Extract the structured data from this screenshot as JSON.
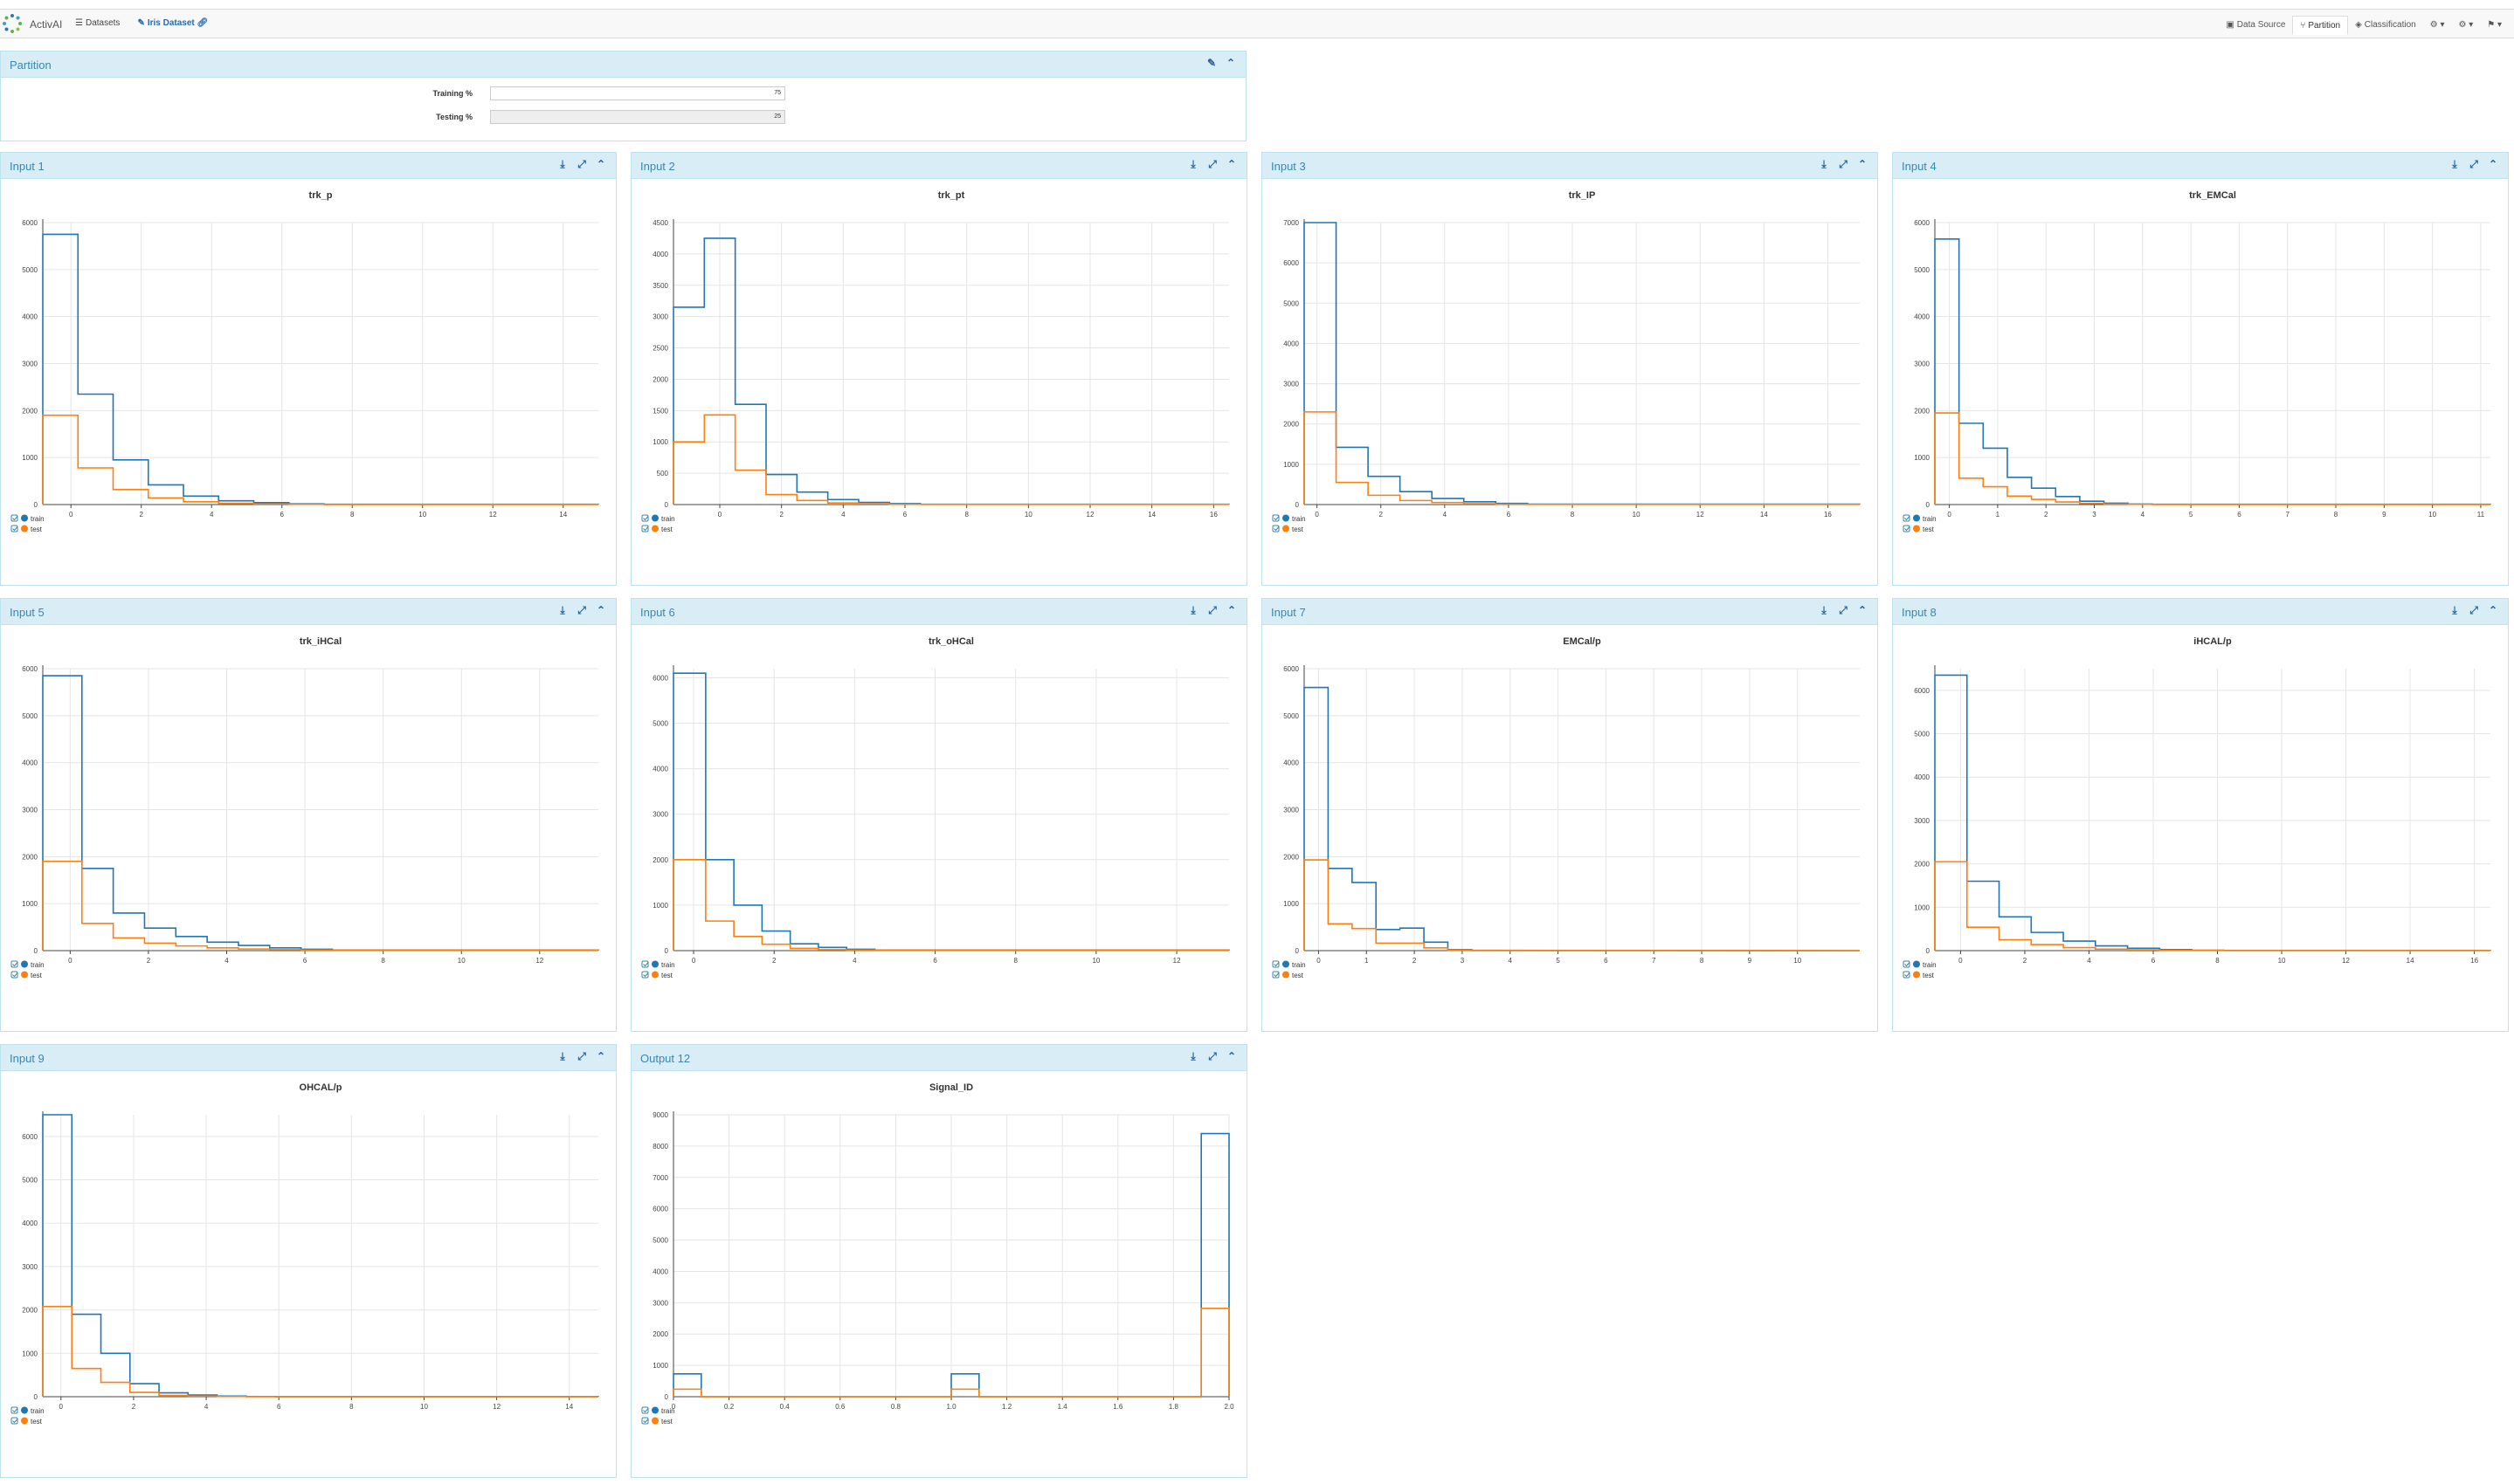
{
  "app": {
    "brand": "ActivAI",
    "nav_datasets": "Datasets",
    "nav_dataset_name": "Iris Dataset",
    "nav_data_source": "Data Source",
    "nav_partition": "Partition",
    "nav_classification": "Classification"
  },
  "partition": {
    "title": "Partition",
    "training_label": "Training %",
    "training_value": "75",
    "testing_label": "Testing %",
    "testing_value": "25"
  },
  "legend": {
    "train": "train",
    "test": "test"
  },
  "colors": {
    "train": "#1f77b4",
    "test": "#ff7f0e",
    "header": "#d9edf7",
    "title": "#3a87ad"
  },
  "panels": [
    {
      "title": "Input 1"
    },
    {
      "title": "Input 2"
    },
    {
      "title": "Input 3"
    },
    {
      "title": "Input 4"
    },
    {
      "title": "Input 5"
    },
    {
      "title": "Input 6"
    },
    {
      "title": "Input 7"
    },
    {
      "title": "Input 8"
    },
    {
      "title": "Input 9"
    },
    {
      "title": "Output 12"
    }
  ],
  "chart_data": [
    {
      "type": "line",
      "title": "trk_p",
      "xlim": [
        -0.8,
        15
      ],
      "ylim": [
        0,
        6000
      ],
      "xticks": [
        0,
        2,
        4,
        6,
        8,
        10,
        12,
        14
      ],
      "xticklabels": [
        "0",
        "2",
        "4",
        "6",
        "8",
        "10",
        "12",
        "14"
      ],
      "yticks": [
        0,
        1000,
        2000,
        3000,
        4000,
        5000,
        6000
      ],
      "bin_edges": [
        -0.8,
        0.2,
        1.2,
        2.2,
        3.2,
        4.2,
        5.2,
        6.2,
        7.2,
        15
      ],
      "series": [
        {
          "name": "train",
          "values": [
            5750,
            2350,
            950,
            420,
            180,
            80,
            40,
            15,
            5
          ]
        },
        {
          "name": "test",
          "values": [
            1900,
            780,
            320,
            140,
            60,
            27,
            13,
            5,
            2
          ]
        }
      ]
    },
    {
      "type": "line",
      "title": "trk_pt",
      "xlim": [
        -1.5,
        16.5
      ],
      "ylim": [
        0,
        4500
      ],
      "xticks": [
        0,
        2,
        4,
        6,
        8,
        10,
        12,
        14,
        16
      ],
      "xticklabels": [
        "0",
        "2",
        "4",
        "6",
        "8",
        "10",
        "12",
        "14",
        "16"
      ],
      "yticks": [
        0,
        500,
        1000,
        1500,
        2000,
        2500,
        3000,
        3500,
        4000,
        4500
      ],
      "bin_edges": [
        -1.5,
        -0.5,
        0.5,
        1.5,
        2.5,
        3.5,
        4.5,
        5.5,
        6.5,
        16.5
      ],
      "series": [
        {
          "name": "train",
          "values": [
            3150,
            4250,
            1600,
            480,
            200,
            80,
            35,
            15,
            5
          ]
        },
        {
          "name": "test",
          "values": [
            1000,
            1430,
            550,
            160,
            65,
            25,
            12,
            5,
            2
          ]
        }
      ]
    },
    {
      "type": "line",
      "title": "trk_IP",
      "xlim": [
        -0.4,
        17
      ],
      "ylim": [
        0,
        7000
      ],
      "xticks": [
        0,
        2,
        4,
        6,
        8,
        10,
        12,
        14,
        16
      ],
      "xticklabels": [
        "0",
        "2",
        "4",
        "6",
        "8",
        "10",
        "12",
        "14",
        "16"
      ],
      "yticks": [
        0,
        1000,
        2000,
        3000,
        4000,
        5000,
        6000,
        7000
      ],
      "bin_edges": [
        -0.4,
        0.6,
        1.6,
        2.6,
        3.6,
        4.6,
        5.6,
        6.6,
        17
      ],
      "series": [
        {
          "name": "train",
          "values": [
            7000,
            1420,
            700,
            320,
            150,
            70,
            30,
            10
          ]
        },
        {
          "name": "test",
          "values": [
            2300,
            550,
            230,
            100,
            50,
            20,
            10,
            3
          ]
        }
      ]
    },
    {
      "type": "line",
      "title": "trk_EMCal",
      "xlim": [
        -0.3,
        11.2
      ],
      "ylim": [
        0,
        6000
      ],
      "xticks": [
        0,
        1,
        2,
        3,
        4,
        5,
        6,
        7,
        8,
        9,
        10,
        11
      ],
      "xticklabels": [
        "0",
        "1",
        "2",
        "3",
        "4",
        "5",
        "6",
        "7",
        "8",
        "9",
        "10",
        "11"
      ],
      "yticks": [
        0,
        1000,
        2000,
        3000,
        4000,
        5000,
        6000
      ],
      "bin_edges": [
        -0.3,
        0.2,
        0.7,
        1.2,
        1.7,
        2.2,
        2.7,
        3.2,
        3.7,
        4.2,
        11.2
      ],
      "series": [
        {
          "name": "train",
          "values": [
            5650,
            1730,
            1200,
            580,
            350,
            170,
            70,
            30,
            10,
            5
          ]
        },
        {
          "name": "test",
          "values": [
            1950,
            560,
            380,
            180,
            110,
            55,
            25,
            10,
            5,
            2
          ]
        }
      ]
    },
    {
      "type": "line",
      "title": "trk_iHCal",
      "xlim": [
        -0.7,
        13.5
      ],
      "ylim": [
        0,
        6000
      ],
      "xticks": [
        0,
        2,
        4,
        6,
        8,
        10,
        12
      ],
      "xticklabels": [
        "0",
        "2",
        "4",
        "6",
        "8",
        "10",
        "12"
      ],
      "yticks": [
        0,
        1000,
        2000,
        3000,
        4000,
        5000,
        6000
      ],
      "bin_edges": [
        -0.7,
        0.3,
        1.1,
        1.9,
        2.7,
        3.5,
        4.3,
        5.1,
        5.9,
        6.7,
        13.5
      ],
      "series": [
        {
          "name": "train",
          "values": [
            5850,
            1750,
            800,
            480,
            300,
            180,
            110,
            60,
            30,
            10
          ]
        },
        {
          "name": "test",
          "values": [
            1900,
            580,
            270,
            160,
            100,
            60,
            35,
            20,
            10,
            3
          ]
        }
      ]
    },
    {
      "type": "line",
      "title": "trk_oHCal",
      "xlim": [
        -0.5,
        13.3
      ],
      "ylim": [
        0,
        6200
      ],
      "xticks": [
        0,
        2,
        4,
        6,
        8,
        10,
        12
      ],
      "xticklabels": [
        "0",
        "2",
        "4",
        "6",
        "8",
        "10",
        "12"
      ],
      "yticks": [
        0,
        1000,
        2000,
        3000,
        4000,
        5000,
        6000
      ],
      "bin_edges": [
        -0.5,
        0.3,
        1.0,
        1.7,
        2.4,
        3.1,
        3.8,
        4.5,
        13.3
      ],
      "series": [
        {
          "name": "train",
          "values": [
            6100,
            2000,
            1000,
            430,
            150,
            70,
            30,
            10
          ]
        },
        {
          "name": "test",
          "values": [
            2000,
            650,
            310,
            140,
            50,
            20,
            10,
            3
          ]
        }
      ]
    },
    {
      "type": "line",
      "title": "EMCal/p",
      "xlim": [
        -0.3,
        11.3
      ],
      "ylim": [
        0,
        6000
      ],
      "xticks": [
        0,
        1,
        2,
        3,
        4,
        5,
        6,
        7,
        8,
        9,
        10
      ],
      "xticklabels": [
        "0",
        "1",
        "2",
        "3",
        "4",
        "5",
        "6",
        "7",
        "8",
        "9",
        "10"
      ],
      "yticks": [
        0,
        1000,
        2000,
        3000,
        4000,
        5000,
        6000
      ],
      "bin_edges": [
        -0.3,
        0.2,
        0.7,
        1.2,
        1.7,
        2.2,
        2.7,
        3.2,
        3.7,
        11.3
      ],
      "series": [
        {
          "name": "train",
          "values": [
            5600,
            1750,
            1450,
            450,
            480,
            180,
            20,
            5
          ]
        },
        {
          "name": "test",
          "values": [
            1930,
            570,
            470,
            160,
            160,
            60,
            8,
            2
          ]
        }
      ]
    },
    {
      "type": "line",
      "title": "iHCAL/p",
      "xlim": [
        -0.8,
        16.5
      ],
      "ylim": [
        0,
        6500
      ],
      "xticks": [
        0,
        2,
        4,
        6,
        8,
        10,
        12,
        14,
        16
      ],
      "xticklabels": [
        "0",
        "2",
        "4",
        "6",
        "8",
        "10",
        "12",
        "14",
        "16"
      ],
      "yticks": [
        0,
        1000,
        2000,
        3000,
        4000,
        5000,
        6000
      ],
      "bin_edges": [
        -0.8,
        0.2,
        1.2,
        2.2,
        3.2,
        4.2,
        5.2,
        6.2,
        7.2,
        8.2,
        16.5
      ],
      "series": [
        {
          "name": "train",
          "values": [
            6350,
            1600,
            780,
            420,
            220,
            110,
            55,
            25,
            10,
            5
          ]
        },
        {
          "name": "test",
          "values": [
            2050,
            540,
            250,
            140,
            70,
            35,
            17,
            8,
            3,
            2
          ]
        }
      ]
    },
    {
      "type": "line",
      "title": "OHCAL/p",
      "xlim": [
        -0.5,
        14.8
      ],
      "ylim": [
        0,
        6500
      ],
      "xticks": [
        0,
        2,
        4,
        6,
        8,
        10,
        12,
        14
      ],
      "xticklabels": [
        "0",
        "2",
        "4",
        "6",
        "8",
        "10",
        "12",
        "14"
      ],
      "yticks": [
        0,
        1000,
        2000,
        3000,
        4000,
        5000,
        6000
      ],
      "bin_edges": [
        -0.5,
        0.3,
        1.1,
        1.9,
        2.7,
        3.5,
        4.3,
        5.1,
        5.9,
        14.8
      ],
      "series": [
        {
          "name": "train",
          "values": [
            6500,
            1900,
            1000,
            300,
            90,
            40,
            15,
            5,
            2
          ]
        },
        {
          "name": "test",
          "values": [
            2080,
            650,
            330,
            100,
            30,
            13,
            5,
            2,
            1
          ]
        }
      ]
    },
    {
      "type": "line",
      "title": "Signal_ID",
      "xlim": [
        0,
        2
      ],
      "ylim": [
        0,
        9000
      ],
      "xticks": [
        0,
        0.2,
        0.4,
        0.6,
        0.8,
        1.0,
        1.2,
        1.4,
        1.6,
        1.8,
        2.0
      ],
      "xticklabels": [
        "0",
        "0.2",
        "0.4",
        "0.6",
        "0.8",
        "1.0",
        "1.2",
        "1.4",
        "1.6",
        "1.8",
        "2.0"
      ],
      "yticks": [
        0,
        1000,
        2000,
        3000,
        4000,
        5000,
        6000,
        7000,
        8000,
        9000
      ],
      "bin_edges": [
        0,
        0.1,
        0.2,
        0.3,
        0.4,
        0.5,
        0.6,
        0.7,
        0.8,
        0.9,
        1.0,
        1.1,
        1.2,
        1.3,
        1.4,
        1.5,
        1.6,
        1.7,
        1.8,
        1.9,
        2.0
      ],
      "series": [
        {
          "name": "train",
          "values": [
            730,
            0,
            0,
            0,
            0,
            0,
            0,
            0,
            0,
            0,
            730,
            0,
            0,
            0,
            0,
            0,
            0,
            0,
            0,
            8400
          ]
        },
        {
          "name": "test",
          "values": [
            240,
            0,
            0,
            0,
            0,
            0,
            0,
            0,
            0,
            0,
            240,
            0,
            0,
            0,
            0,
            0,
            0,
            0,
            0,
            2820
          ]
        }
      ]
    }
  ]
}
